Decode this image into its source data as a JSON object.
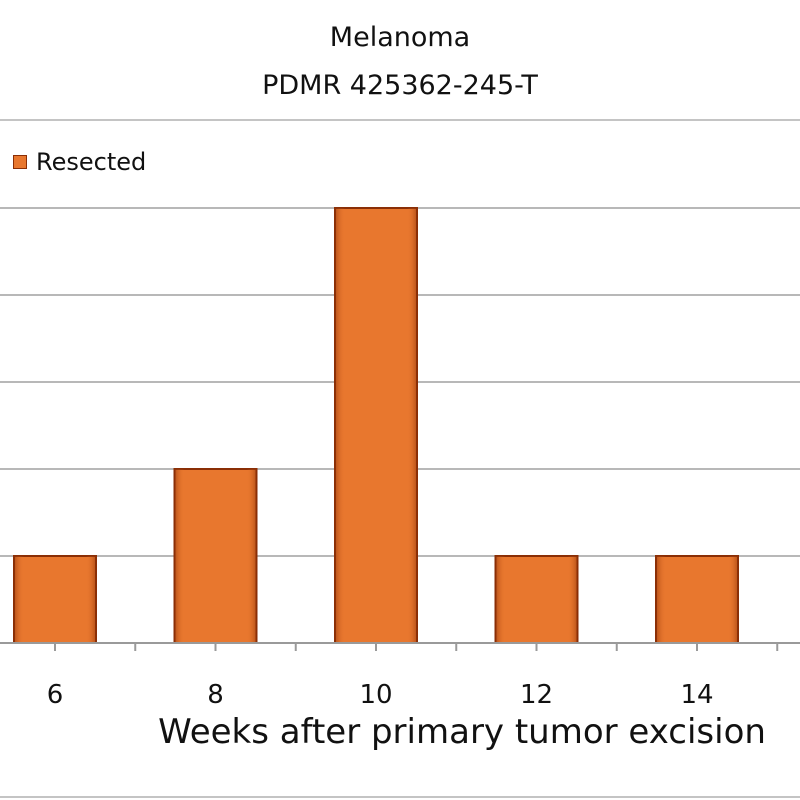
{
  "chart_data": {
    "type": "bar",
    "title_lines": [
      "Melanoma",
      "PDMR 425362-245-T"
    ],
    "categories": [
      "6",
      "8",
      "10",
      "12",
      "14"
    ],
    "series": [
      {
        "name": "Resected",
        "values": [
          1,
          2,
          5,
          1,
          1
        ]
      }
    ],
    "xlabel": "Weeks after primary tumor excision",
    "ylabel": "",
    "ylim": [
      0,
      5
    ],
    "grid": true,
    "legend_position": "top-left",
    "colors": {
      "bar_fill": "#e8772e",
      "bar_edge": "#8a2e05",
      "grid": "#b8b8b8"
    }
  }
}
